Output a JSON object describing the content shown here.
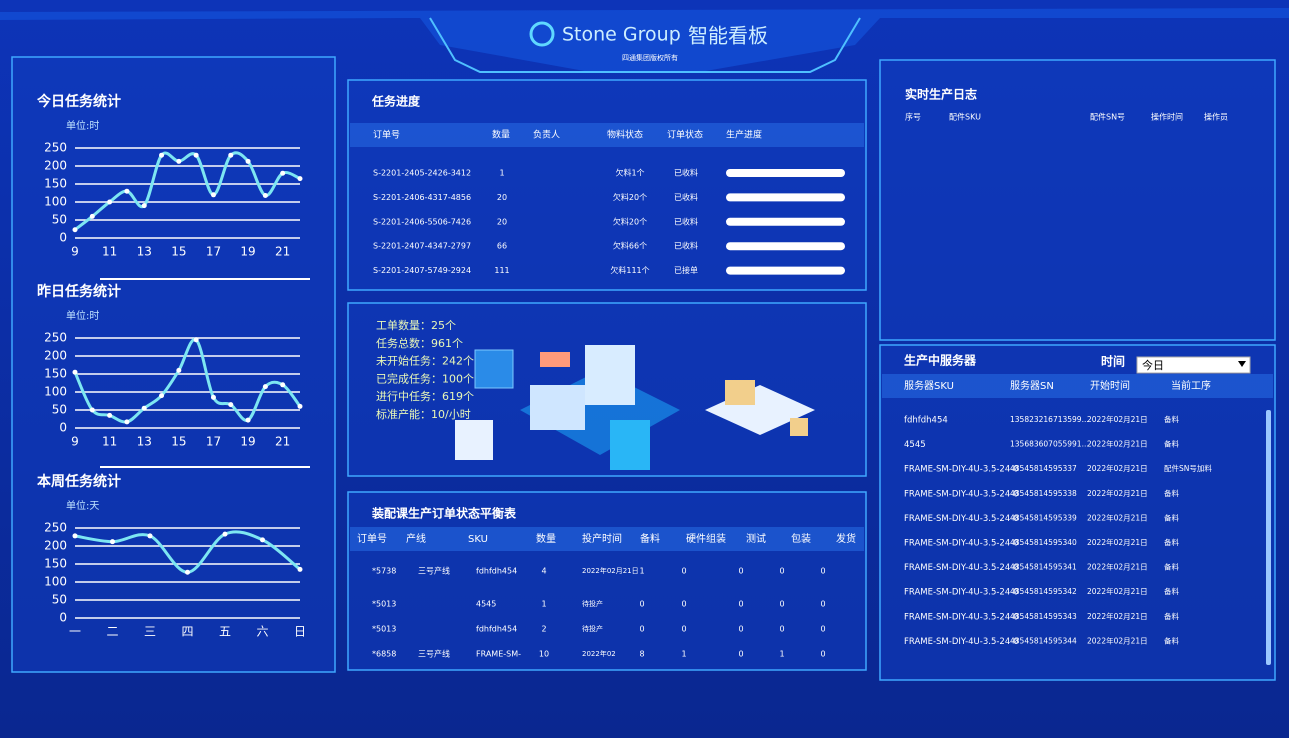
{
  "header": {
    "brand": "Stone Group",
    "title": "智能看板",
    "subtitle": "四通集团版权所有"
  },
  "chart_data": [
    {
      "type": "line",
      "title": "今日任务统计",
      "unit_label": "单位:时",
      "x": [
        9,
        10,
        11,
        12,
        13,
        14,
        15,
        16,
        17,
        18,
        19,
        20,
        21,
        22
      ],
      "xlim": [
        9,
        22
      ],
      "xticks": [
        9,
        11,
        13,
        15,
        17,
        19,
        21
      ],
      "values": [
        23,
        60,
        100,
        130,
        90,
        230,
        213,
        230,
        120,
        230,
        213,
        118,
        180,
        165
      ],
      "ylim": [
        0,
        250
      ],
      "yticks": [
        0,
        50,
        100,
        150,
        200,
        250
      ],
      "color": "#7de6f2",
      "grid": true
    },
    {
      "type": "line",
      "title": "昨日任务统计",
      "unit_label": "单位:时",
      "x": [
        9,
        10,
        11,
        12,
        13,
        14,
        15,
        16,
        17,
        18,
        19,
        20,
        21,
        22
      ],
      "xlim": [
        9,
        22
      ],
      "xticks": [
        9,
        11,
        13,
        15,
        17,
        19,
        21
      ],
      "values": [
        155,
        50,
        35,
        17,
        55,
        90,
        160,
        245,
        85,
        65,
        22,
        115,
        120,
        60
      ],
      "ylim": [
        0,
        250
      ],
      "yticks": [
        0,
        50,
        100,
        150,
        200,
        250
      ],
      "color": "#7de6f2",
      "grid": true
    },
    {
      "type": "line",
      "title": "本周任务统计",
      "unit_label": "单位:天",
      "categories": [
        "一",
        "二",
        "三",
        "四",
        "五",
        "六",
        "日"
      ],
      "values": [
        228,
        212,
        228,
        127,
        233,
        217,
        135
      ],
      "ylim": [
        0,
        250
      ],
      "yticks": [
        0,
        50,
        100,
        150,
        200,
        250
      ],
      "color": "#7de6f2",
      "grid": true
    }
  ],
  "task_progress": {
    "title": "任务进度",
    "columns": [
      "订单号",
      "数量",
      "负责人",
      "物料状态",
      "订单状态",
      "生产进度"
    ],
    "rows": [
      [
        "S-2201-2405-2426-3412",
        1,
        null,
        "欠料1个",
        "已收料"
      ],
      [
        "S-2201-2406-4317-4856",
        20,
        null,
        "欠料20个",
        "已收料"
      ],
      [
        "S-2201-2406-5506-7426",
        20,
        null,
        "欠料20个",
        "已收料"
      ],
      [
        "S-2201-2407-4347-2797",
        66,
        null,
        "欠料66个",
        "已收料"
      ],
      [
        "S-2201-2407-5749-2924",
        111,
        null,
        "欠料111个",
        "已接单"
      ]
    ]
  },
  "summary": {
    "lines": [
      "工单数量：25个",
      "任务总数：961个",
      "未开始任务：242个",
      "已完成任务：100个",
      "进行中任务：619个",
      "标准产能：10/小时"
    ]
  },
  "balance_table": {
    "title": "装配课生产订单状态平衡表",
    "columns": [
      "订单号",
      "产线",
      "SKU",
      "数量",
      "投产时间",
      "备料",
      "硬件组装",
      "测试",
      "包装",
      "发货"
    ],
    "rows": [
      [
        "*5738",
        "三号产线",
        "fdhfdh454",
        4,
        "2022年02月21日",
        1,
        0,
        0,
        0,
        0
      ],
      [
        "*5013",
        null,
        "4545",
        1,
        "待投产",
        0,
        0,
        0,
        0,
        0
      ],
      [
        "*5013",
        null,
        "fdhfdh454",
        2,
        "待投产",
        0,
        0,
        0,
        0,
        0
      ],
      [
        "*6858",
        "三号产线",
        "FRAME-SM-",
        10,
        "2022年02",
        8,
        1,
        0,
        1,
        0
      ]
    ]
  },
  "production_log": {
    "title": "实时生产日志",
    "columns": [
      "序号",
      "配件SKU",
      "配件SN号",
      "操作时间",
      "操作员"
    ]
  },
  "servers": {
    "title": "生产中服务器",
    "time_label": "时间",
    "time_option": "今日",
    "columns": [
      "服务器SKU",
      "服务器SN",
      "开始时间",
      "当前工序"
    ],
    "rows": [
      [
        "fdhfdh454",
        "135823216713599...",
        "2022年02月21日",
        "备料"
      ],
      [
        "4545",
        "135683607055991...",
        "2022年02月21日",
        "备料"
      ],
      [
        "FRAME-SM-DIY-4U-3.5-24-0",
        "48545814595337",
        "2022年02月21日",
        "配件SN号加料"
      ],
      [
        "FRAME-SM-DIY-4U-3.5-24-0",
        "48545814595338",
        "2022年02月21日",
        "备料"
      ],
      [
        "FRAME-SM-DIY-4U-3.5-24-0",
        "48545814595339",
        "2022年02月21日",
        "备料"
      ],
      [
        "FRAME-SM-DIY-4U-3.5-24-0",
        "48545814595340",
        "2022年02月21日",
        "备料"
      ],
      [
        "FRAME-SM-DIY-4U-3.5-24-0",
        "48545814595341",
        "2022年02月21日",
        "备料"
      ],
      [
        "FRAME-SM-DIY-4U-3.5-24-0",
        "48545814595342",
        "2022年02月21日",
        "备料"
      ],
      [
        "FRAME-SM-DIY-4U-3.5-24-0",
        "48545814595343",
        "2022年02月21日",
        "备料"
      ],
      [
        "FRAME-SM-DIY-4U-3.5-24-0",
        "48545814595344",
        "2022年02月21日",
        "备料"
      ]
    ]
  }
}
